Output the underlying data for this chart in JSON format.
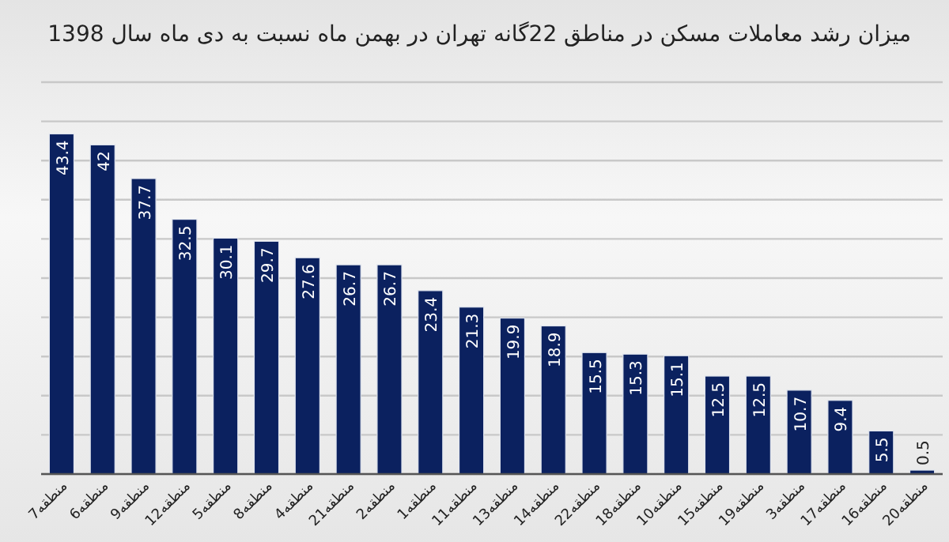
{
  "chart_data": {
    "type": "bar",
    "title": "میزان رشد معاملات مسکن در مناطق 22گانه تهران در بهمن ماه نسبت به دی ماه سال 1398",
    "categories": [
      "7منطقه",
      "6منطقه",
      "9منطقه",
      "12منطقه",
      "5منطقه",
      "8منطقه",
      "4منطقه",
      "21منطقه",
      "2منطقه",
      "منطقه1",
      "11منطقه",
      "13منطقه",
      "14منطقه",
      "22منطقه",
      "18منطقه",
      "10منطقه",
      "15منطقه",
      "19منطقه",
      "3منطقه",
      "17منطقه",
      "منطقه16",
      "20منطقه"
    ],
    "values": [
      43.4,
      42,
      37.7,
      32.5,
      30.1,
      29.7,
      27.6,
      26.7,
      26.7,
      23.4,
      21.3,
      19.9,
      18.9,
      15.5,
      15.3,
      15.1,
      12.5,
      12.5,
      10.7,
      9.4,
      5.5,
      0.5
    ],
    "color": "#0b215f",
    "ylim": [
      0,
      50
    ],
    "yticks": [
      {
        "value": 0,
        "label": null
      },
      {
        "value": 5,
        "label": null
      },
      {
        "value": 10,
        "label": null
      },
      {
        "value": 15,
        "label": null
      },
      {
        "value": 20,
        "label": null
      },
      {
        "value": 25,
        "label": null
      },
      {
        "value": 30,
        "label": null
      },
      {
        "value": 35,
        "label": null
      },
      {
        "value": 40,
        "label": null
      },
      {
        "value": 45,
        "label": null
      },
      {
        "value": 50,
        "label": null
      }
    ],
    "grid": "y",
    "data_labels": true
  }
}
